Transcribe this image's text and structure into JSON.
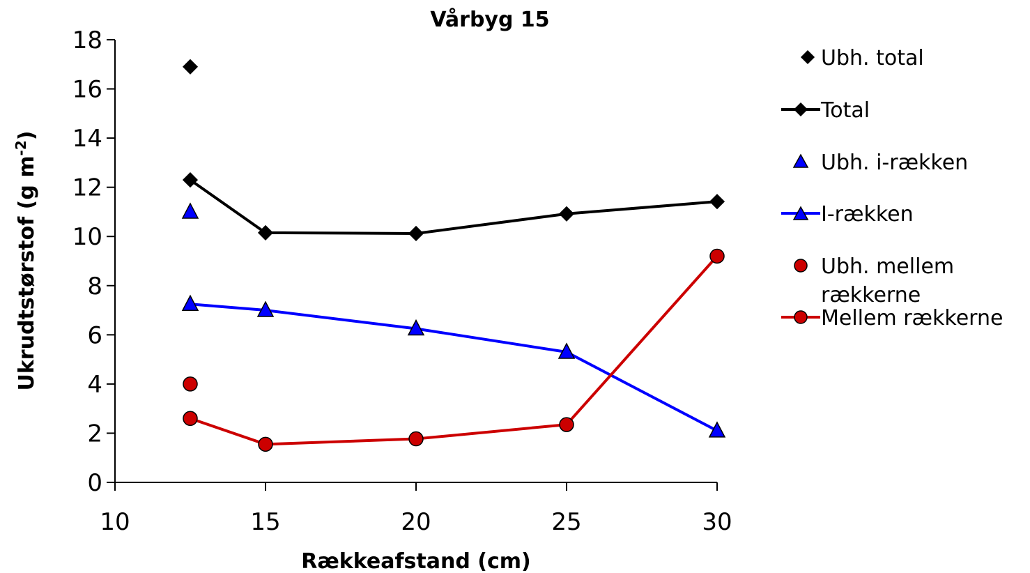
{
  "chart_data": {
    "type": "line",
    "title": "Vårbyg 15",
    "xlabel": "Rækkeafstand (cm)",
    "ylabel_main": "Ukrudtstørstof (g m",
    "ylabel_sup": "-2",
    "ylabel_close": ")",
    "xlim": [
      10,
      30
    ],
    "ylim": [
      0,
      18
    ],
    "xticks": [
      "10",
      "15",
      "20",
      "25",
      "30"
    ],
    "yticks": [
      "0",
      "2",
      "4",
      "6",
      "8",
      "10",
      "12",
      "14",
      "16",
      "18"
    ],
    "grid": false,
    "legend_position": "right",
    "series": [
      {
        "name": "Ubh. total",
        "marker": "diamond",
        "color": "#000000",
        "line": false,
        "x": [
          12.5
        ],
        "y": [
          16.9
        ]
      },
      {
        "name": "Total",
        "marker": "diamond",
        "color": "#000000",
        "line": true,
        "x": [
          12.5,
          15,
          20,
          25,
          30
        ],
        "y": [
          12.3,
          10.15,
          10.12,
          10.92,
          11.42
        ]
      },
      {
        "name": "Ubh. i-rækken",
        "marker": "triangle",
        "color": "#0000ff",
        "line": false,
        "x": [
          12.5
        ],
        "y": [
          11.0
        ]
      },
      {
        "name": "I-rækken",
        "marker": "triangle",
        "color": "#0000ff",
        "line": true,
        "x": [
          12.5,
          15,
          20,
          25,
          30
        ],
        "y": [
          7.25,
          7.0,
          6.25,
          5.3,
          2.1
        ]
      },
      {
        "name": "Ubh. mellem rækkerne",
        "marker": "circle",
        "color": "#cc0000",
        "line": false,
        "x": [
          12.5
        ],
        "y": [
          4.0
        ]
      },
      {
        "name": "Mellem rækkerne",
        "marker": "circle",
        "color": "#cc0000",
        "line": true,
        "x": [
          12.5,
          15,
          20,
          25,
          30
        ],
        "y": [
          2.6,
          1.55,
          1.77,
          2.35,
          9.2
        ]
      }
    ],
    "legend_labels": {
      "s0": "Ubh. total",
      "s1": "Total",
      "s2": "Ubh. i-rækken",
      "s3": "I-rækken",
      "s4a": "Ubh. mellem",
      "s4b": "rækkerne",
      "s5": "Mellem rækkerne"
    }
  }
}
